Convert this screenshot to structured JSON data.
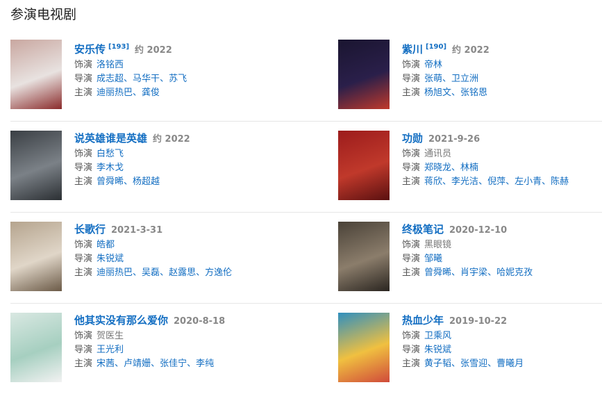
{
  "heading": "参演电视剧",
  "labels": {
    "role": "饰演",
    "director": "导演",
    "cast": "主演"
  },
  "separator": "、",
  "items": [
    {
      "title": "安乐传",
      "ref": "[193]",
      "date": "约 2022",
      "role": "洛铭西",
      "role_linked": true,
      "directors": [
        "成志超",
        "马华干",
        "苏飞"
      ],
      "cast": [
        "迪丽热巴",
        "龚俊"
      ],
      "poster_colors": [
        "#c9a7a0",
        "#e8e2e0",
        "#8a2b2b"
      ]
    },
    {
      "title": "紫川",
      "ref": "[190]",
      "date": "约 2022",
      "role": "帝林",
      "role_linked": true,
      "directors": [
        "张萌",
        "卫立洲"
      ],
      "cast": [
        "杨旭文",
        "张铭恩"
      ],
      "poster_colors": [
        "#1a1530",
        "#2a1f4a",
        "#c0392b"
      ]
    },
    {
      "title": "说英雄谁是英雄",
      "ref": "",
      "date": "约 2022",
      "role": "白愁飞",
      "role_linked": true,
      "directors": [
        "李木戈"
      ],
      "cast": [
        "曾舜晞",
        "杨超越"
      ],
      "poster_colors": [
        "#3a3f44",
        "#7b8187",
        "#2b2f33"
      ]
    },
    {
      "title": "功勋",
      "ref": "",
      "date": "2021-9-26",
      "role": "通讯员",
      "role_linked": false,
      "directors": [
        "郑晓龙",
        "林楠"
      ],
      "cast": [
        "蒋欣",
        "李光洁",
        "倪萍",
        "左小青",
        "陈赫"
      ],
      "poster_colors": [
        "#9c1c1c",
        "#c0392b",
        "#5a1010"
      ]
    },
    {
      "title": "长歌行",
      "ref": "",
      "date": "2021-3-31",
      "role": "皓都",
      "role_linked": true,
      "directors": [
        "朱锐斌"
      ],
      "cast": [
        "迪丽热巴",
        "吴磊",
        "赵露思",
        "方逸伦"
      ],
      "poster_colors": [
        "#b5a48e",
        "#e0d6c8",
        "#6b5a47"
      ]
    },
    {
      "title": "终极笔记",
      "ref": "",
      "date": "2020-12-10",
      "role": "黑眼镜",
      "role_linked": false,
      "directors": [
        "邹曦"
      ],
      "cast": [
        "曾舜晞",
        "肖宇梁",
        "哈妮克孜"
      ],
      "poster_colors": [
        "#4a4238",
        "#8b7d6b",
        "#2a2520"
      ]
    },
    {
      "title": "他其实没有那么爱你",
      "ref": "",
      "date": "2020-8-18",
      "role": "贺医生",
      "role_linked": false,
      "directors": [
        "王光利"
      ],
      "cast": [
        "宋茜",
        "卢靖姗",
        "张佳宁",
        "李纯"
      ],
      "poster_colors": [
        "#d9e8e2",
        "#a6cfc0",
        "#f2f2f2"
      ]
    },
    {
      "title": "热血少年",
      "ref": "",
      "date": "2019-10-22",
      "role": "卫乘风",
      "role_linked": true,
      "directors": [
        "朱锐斌"
      ],
      "cast": [
        "黄子韬",
        "张雪迎",
        "曹曦月"
      ],
      "poster_colors": [
        "#2f8fbf",
        "#f0c040",
        "#d04a3a"
      ]
    }
  ]
}
